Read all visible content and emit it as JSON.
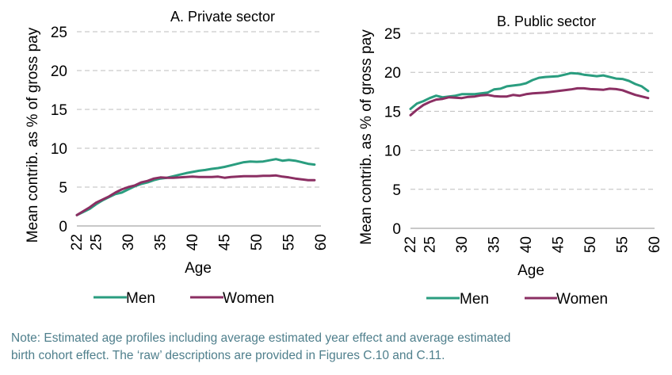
{
  "chart_data": [
    {
      "type": "line",
      "title": "A. Private sector",
      "xlabel": "Age",
      "ylabel": "Mean contrib. as % of gross pay",
      "xlim": [
        22,
        60
      ],
      "ylim": [
        0,
        25
      ],
      "xticks": [
        22,
        25,
        30,
        35,
        40,
        45,
        50,
        55,
        60
      ],
      "yticks": [
        0,
        5,
        10,
        15,
        20,
        25
      ],
      "grid": "horizontal dashed",
      "legend": "bottom",
      "x": [
        22,
        23,
        24,
        25,
        26,
        27,
        28,
        29,
        30,
        31,
        32,
        33,
        34,
        35,
        36,
        37,
        38,
        39,
        40,
        41,
        42,
        43,
        44,
        45,
        46,
        47,
        48,
        49,
        50,
        51,
        52,
        53,
        54,
        55,
        56,
        57,
        58,
        59
      ],
      "series": [
        {
          "name": "Men",
          "color": "#2a9d7f",
          "values": [
            1.4,
            1.8,
            2.2,
            2.8,
            3.3,
            3.7,
            4.1,
            4.3,
            4.7,
            5.1,
            5.4,
            5.6,
            5.9,
            6.1,
            6.2,
            6.4,
            6.6,
            6.8,
            6.95,
            7.1,
            7.2,
            7.35,
            7.45,
            7.6,
            7.8,
            8.0,
            8.2,
            8.3,
            8.25,
            8.3,
            8.45,
            8.6,
            8.4,
            8.5,
            8.4,
            8.2,
            8.0,
            7.9
          ]
        },
        {
          "name": "Women",
          "color": "#8b2f63",
          "values": [
            1.4,
            1.9,
            2.4,
            3.0,
            3.4,
            3.8,
            4.3,
            4.7,
            5.0,
            5.2,
            5.6,
            5.8,
            6.1,
            6.25,
            6.2,
            6.2,
            6.25,
            6.3,
            6.35,
            6.3,
            6.3,
            6.3,
            6.35,
            6.2,
            6.3,
            6.35,
            6.4,
            6.4,
            6.4,
            6.45,
            6.45,
            6.5,
            6.35,
            6.25,
            6.1,
            6.0,
            5.9,
            5.9
          ]
        }
      ]
    },
    {
      "type": "line",
      "title": "B. Public sector",
      "xlabel": "Age",
      "ylabel": "Mean contrib. as % of gross pay",
      "xlim": [
        22,
        60
      ],
      "ylim": [
        0,
        25
      ],
      "xticks": [
        22,
        25,
        30,
        35,
        40,
        45,
        50,
        55,
        60
      ],
      "yticks": [
        0,
        5,
        10,
        15,
        20,
        25
      ],
      "grid": "horizontal dashed",
      "legend": "bottom",
      "x": [
        22,
        23,
        24,
        25,
        26,
        27,
        28,
        29,
        30,
        31,
        32,
        33,
        34,
        35,
        36,
        37,
        38,
        39,
        40,
        41,
        42,
        43,
        44,
        45,
        46,
        47,
        48,
        49,
        50,
        51,
        52,
        53,
        54,
        55,
        56,
        57,
        58,
        59
      ],
      "series": [
        {
          "name": "Men",
          "color": "#2a9d7f",
          "values": [
            15.3,
            16.0,
            16.3,
            16.7,
            17.0,
            16.8,
            16.9,
            17.0,
            17.2,
            17.2,
            17.2,
            17.3,
            17.4,
            17.8,
            17.9,
            18.2,
            18.3,
            18.4,
            18.6,
            19.0,
            19.3,
            19.4,
            19.45,
            19.5,
            19.7,
            19.9,
            19.85,
            19.7,
            19.6,
            19.5,
            19.6,
            19.4,
            19.2,
            19.15,
            18.9,
            18.5,
            18.2,
            17.6
          ]
        },
        {
          "name": "Women",
          "color": "#8b2f63",
          "values": [
            14.5,
            15.2,
            15.8,
            16.2,
            16.5,
            16.6,
            16.8,
            16.75,
            16.7,
            16.85,
            16.9,
            17.05,
            17.1,
            16.95,
            16.9,
            16.9,
            17.1,
            17.0,
            17.2,
            17.3,
            17.35,
            17.4,
            17.5,
            17.6,
            17.7,
            17.8,
            17.95,
            17.95,
            17.85,
            17.8,
            17.75,
            17.9,
            17.85,
            17.7,
            17.4,
            17.1,
            16.9,
            16.7
          ]
        }
      ]
    }
  ],
  "note_lines": [
    "Note: Estimated age profiles including average estimated year effect and average estimated",
    "birth cohort effect. The ‘raw’ descriptions are provided in Figures C.10 and C.11."
  ]
}
